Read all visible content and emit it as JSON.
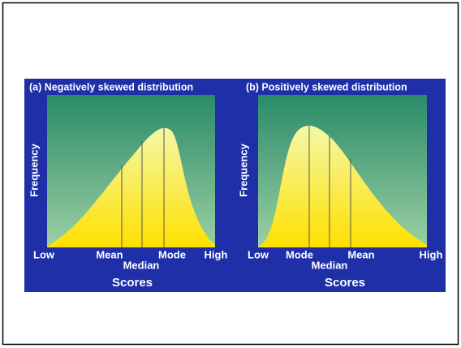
{
  "panels": [
    {
      "title": "(a) Negatively skewed distribution",
      "y_label": "Frequency",
      "x_labels": {
        "low": "Low",
        "mean": "Mean",
        "median": "Median",
        "mode": "Mode",
        "high": "High"
      },
      "x_axis_label": "Scores"
    },
    {
      "title": "(b) Positively skewed distribution",
      "y_label": "Frequency",
      "x_labels": {
        "low": "Low",
        "mode": "Mode",
        "median": "Median",
        "mean": "Mean",
        "high": "High"
      },
      "x_axis_label": "Scores"
    }
  ]
}
